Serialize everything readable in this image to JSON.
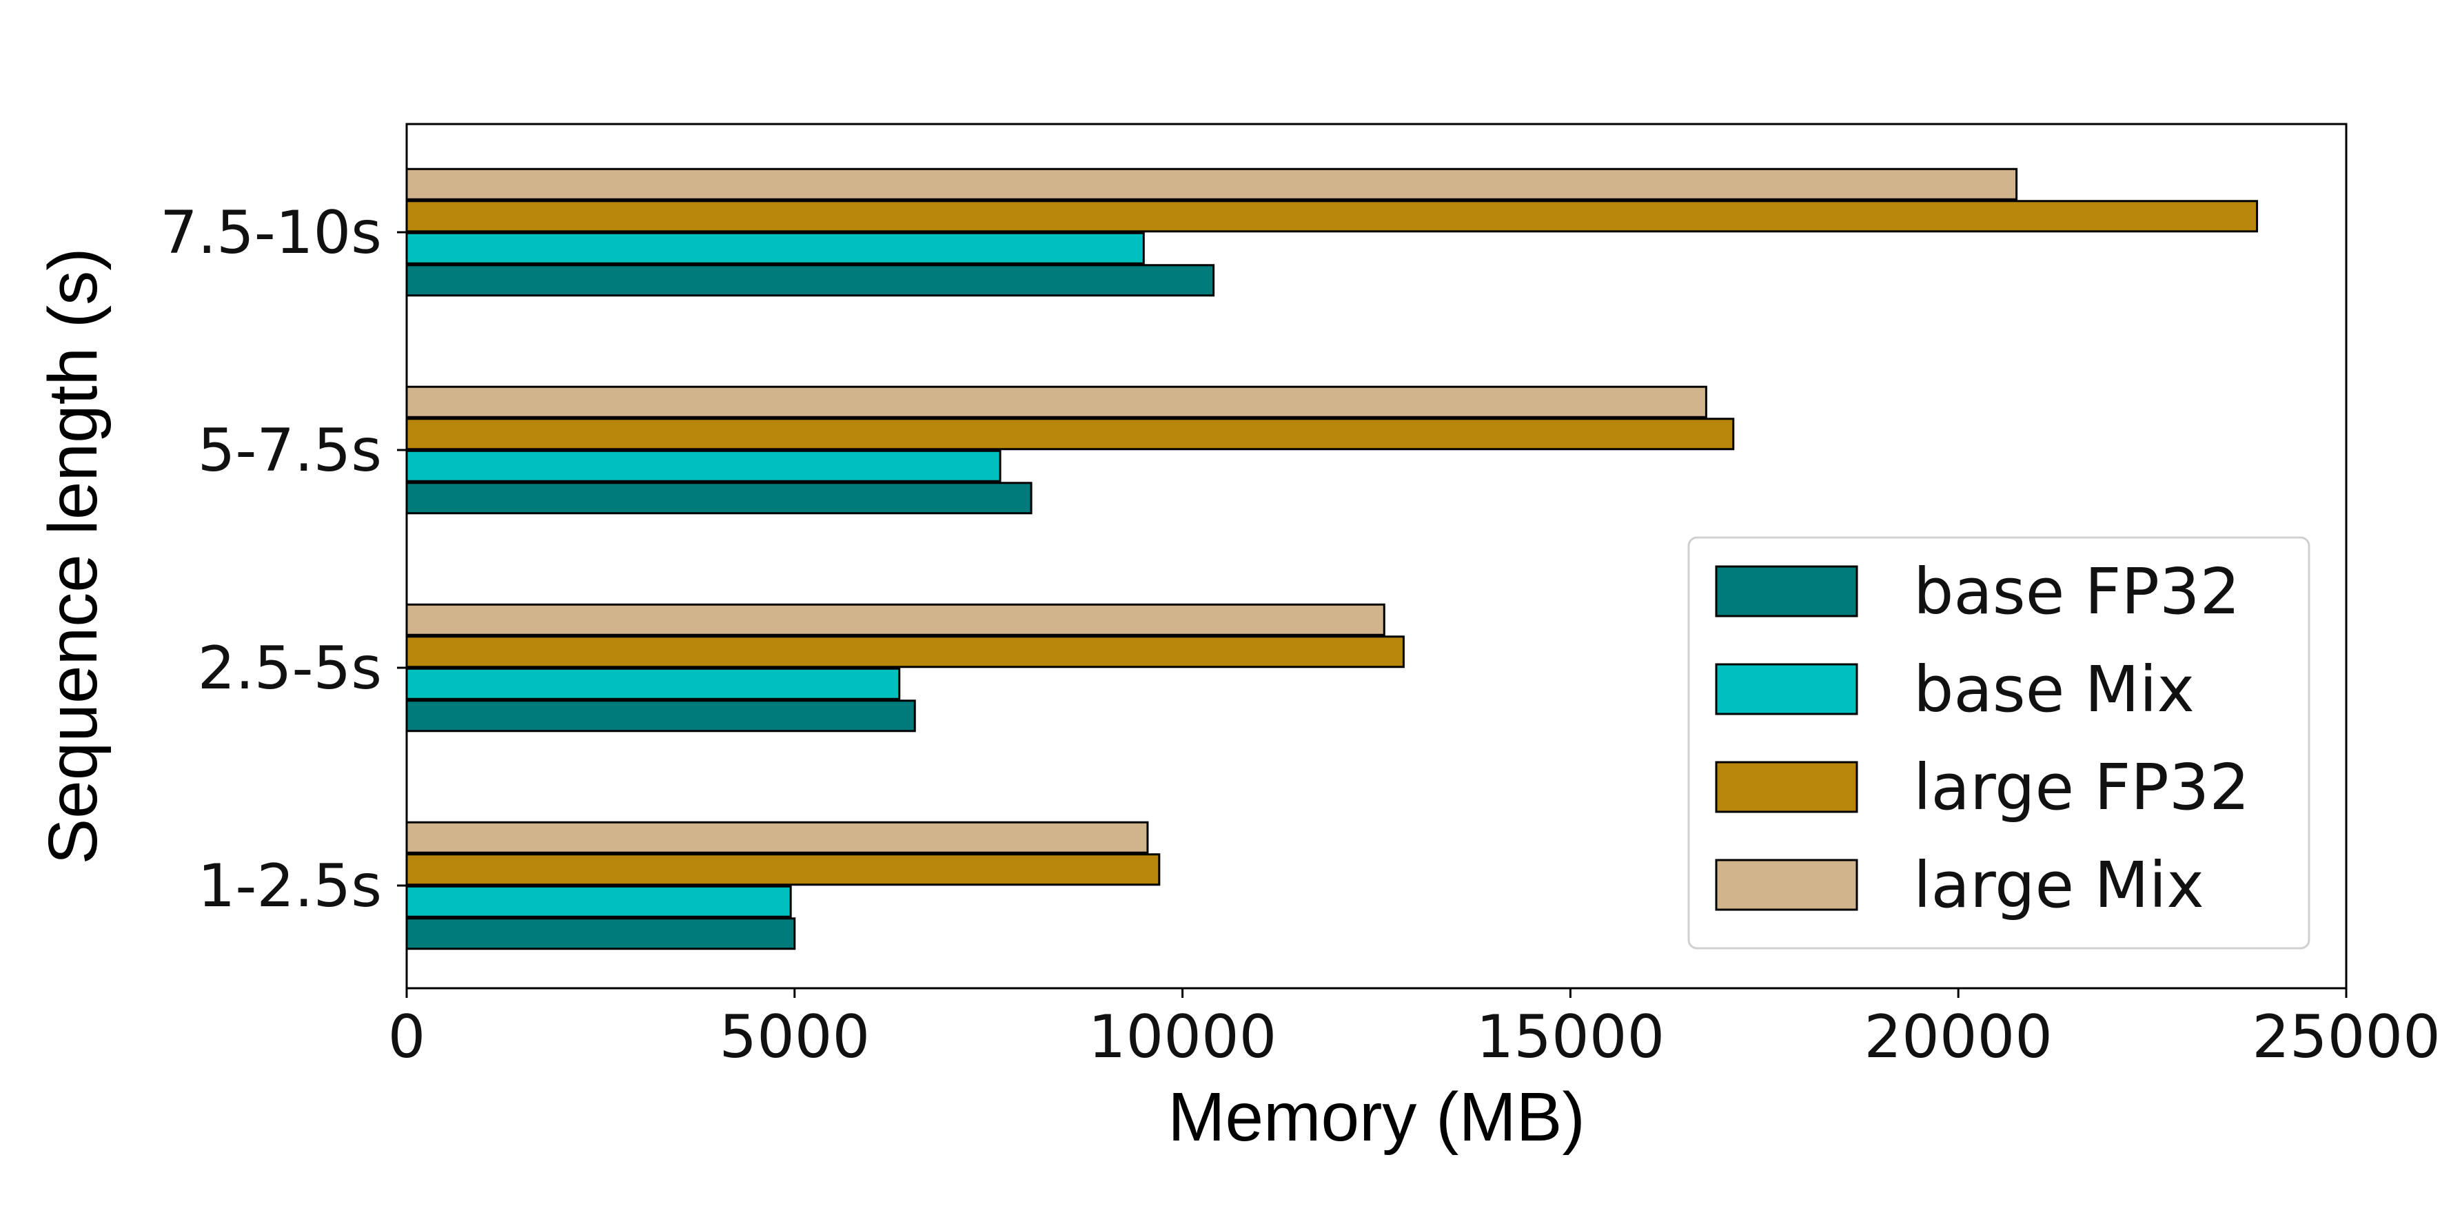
{
  "chart_data": {
    "type": "bar",
    "orientation": "horizontal",
    "title": "",
    "xlabel": "Memory (MB)",
    "ylabel": "Sequence length (s)",
    "categories": [
      "1-2.5s",
      "2.5-5s",
      "5-7.5s",
      "7.5-10s"
    ],
    "xlim": [
      0,
      25000
    ],
    "xticks": [
      0,
      5000,
      10000,
      15000,
      20000,
      25000
    ],
    "xtick_labels": [
      "0",
      "5000",
      "10000",
      "15000",
      "20000",
      "25000"
    ],
    "grid": false,
    "legend_position": "lower-right",
    "series": [
      {
        "name": "base FP32",
        "color": "#007b7b",
        "values": [
          5000,
          6550,
          8050,
          10400
        ]
      },
      {
        "name": "base Mix",
        "color": "#00bfbf",
        "values": [
          4950,
          6350,
          7650,
          9500
        ]
      },
      {
        "name": "large FP32",
        "color": "#b8860b",
        "values": [
          9700,
          12850,
          17100,
          23850
        ]
      },
      {
        "name": "large Mix",
        "color": "#d2b48c",
        "values": [
          9550,
          12600,
          16750,
          20750
        ]
      }
    ]
  }
}
